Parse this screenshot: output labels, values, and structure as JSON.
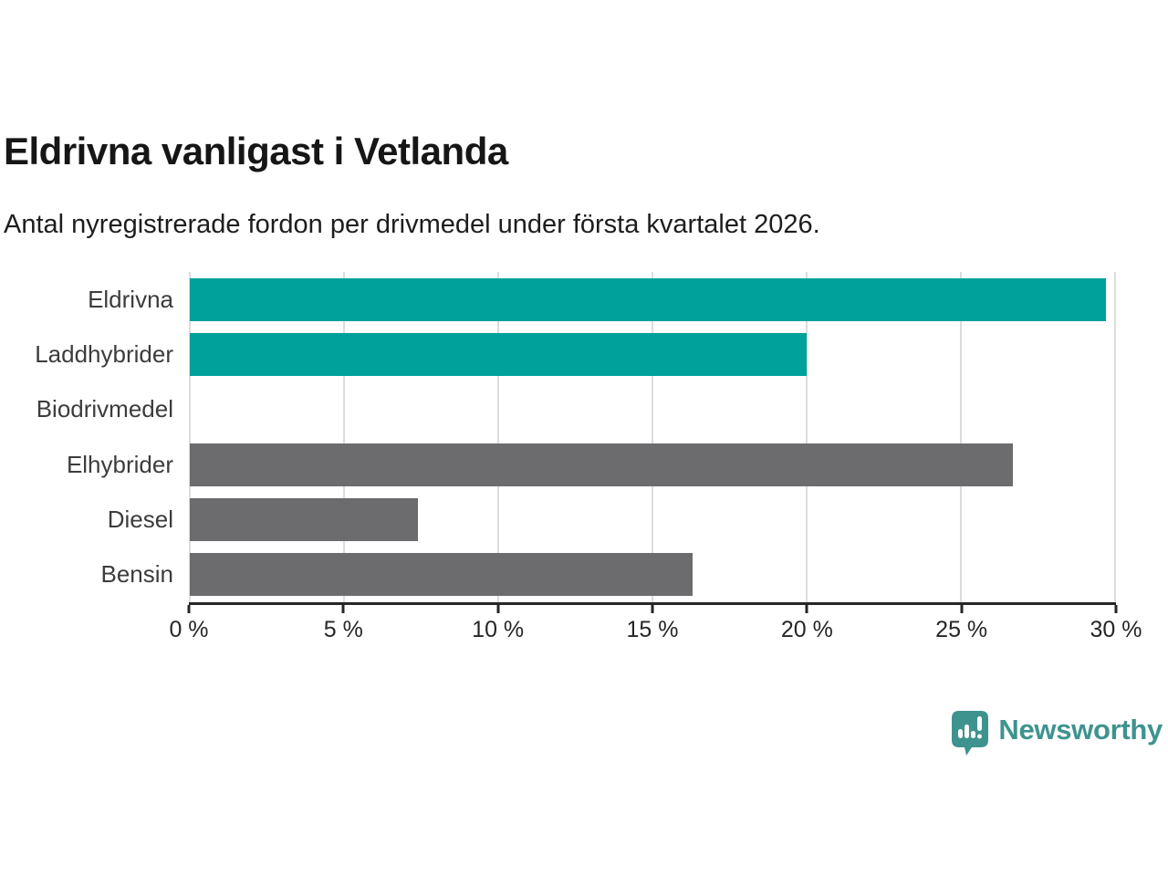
{
  "page": {
    "title": "Eldrivna vanligast i Vetlanda",
    "subtitle": "Antal nyregistrerade fordon per drivmedel under första kvartalet 2026."
  },
  "chart_data": {
    "type": "bar",
    "orientation": "horizontal",
    "title": "Eldrivna vanligast i Vetlanda",
    "subtitle": "Antal nyregistrerade fordon per drivmedel under första kvartalet 2026.",
    "categories": [
      "Eldrivna",
      "Laddhybrider",
      "Biodrivmedel",
      "Elhybrider",
      "Diesel",
      "Bensin"
    ],
    "values": [
      29.7,
      20.0,
      0,
      26.7,
      7.4,
      16.3
    ],
    "unit": "%",
    "bar_colors": [
      "#00a19a",
      "#00a19a",
      "#6c6c6f",
      "#6c6c6f",
      "#6c6c6f",
      "#6c6c6f"
    ],
    "xlabel": "",
    "ylabel": "",
    "xlim": [
      0,
      30
    ],
    "x_ticks": [
      0,
      5,
      10,
      15,
      20,
      25,
      30
    ],
    "x_tick_labels": [
      "0 %",
      "5 %",
      "10 %",
      "15 %",
      "20 %",
      "25 %",
      "30 %"
    ],
    "grid": "vertical",
    "legend": "none",
    "colors": {
      "accent_teal": "#00a19a",
      "muted_gray": "#6c6c6f",
      "gridline": "#dcdcdc",
      "axis": "#262626"
    }
  },
  "footer": {
    "brand": "Newsworthy",
    "brand_color": "#3e938e",
    "logo_icon": "bar-chart-speech-bubble-icon"
  }
}
